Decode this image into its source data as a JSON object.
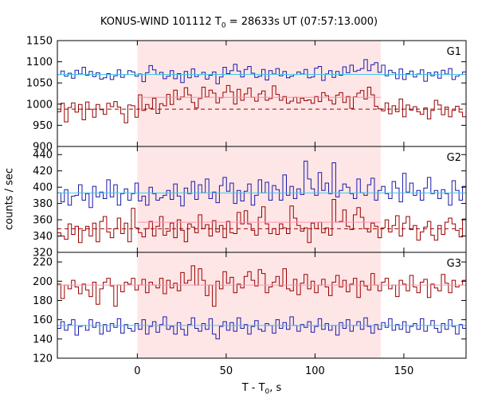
{
  "chart_data": {
    "type": "line",
    "title": {
      "pre": "KONUS-WIND 101112 T",
      "sub": "0",
      "post": " = 28633s UT (07:57:13.000)"
    },
    "xlabel": {
      "pre": "T - T",
      "sub": "0",
      "post": ", s"
    },
    "ylabel": "counts / sec",
    "xlim": [
      -45,
      185
    ],
    "x_ticks": [
      0,
      50,
      100,
      150
    ],
    "shaded_interval": [
      0,
      137
    ],
    "colors": {
      "red": "#990000",
      "blue": "#1a1aaa",
      "red_fit": "#ff90b0",
      "blue_fit": "#40c8e8",
      "shade": "#ffe6e6"
    },
    "panels": [
      {
        "name": "G1",
        "ylim": [
          900,
          1150
        ],
        "y_ticks": [
          900,
          950,
          1000,
          1050,
          1100,
          1150
        ],
        "series": [
          {
            "color": "blue",
            "values": [
              1070,
              1078,
              1066,
              1073,
              1061,
              1080,
              1071,
              1087,
              1068,
              1077,
              1065,
              1074,
              1059,
              1062,
              1072,
              1058,
              1067,
              1081,
              1063,
              1070,
              1079,
              1076,
              1066,
              1071,
              1053,
              1074,
              1091,
              1081,
              1070,
              1075,
              1060,
              1066,
              1079,
              1060,
              1072,
              1051,
              1077,
              1062,
              1083,
              1065,
              1070,
              1075,
              1059,
              1068,
              1076,
              1048,
              1064,
              1087,
              1072,
              1079,
              1094,
              1078,
              1064,
              1082,
              1089,
              1073,
              1063,
              1066,
              1082,
              1057,
              1079,
              1071,
              1084,
              1067,
              1077,
              1062,
              1066,
              1070,
              1076,
              1071,
              1082,
              1062,
              1064,
              1085,
              1089,
              1056,
              1071,
              1079,
              1063,
              1077,
              1068,
              1088,
              1074,
              1092,
              1077,
              1080,
              1084,
              1105,
              1079,
              1093,
              1098,
              1075,
              1092,
              1067,
              1080,
              1074,
              1060,
              1083,
              1058,
              1072,
              1078,
              1064,
              1071,
              1081,
              1054,
              1074,
              1067,
              1076,
              1061,
              1080,
              1071,
              1084,
              1058,
              1066,
              1070,
              1076
            ]
          },
          {
            "color": "red",
            "values": [
              982,
              1002,
              958,
              992,
              1003,
              981,
              999,
              963,
              1005,
              988,
              969,
              999,
              987,
              976,
              1002,
              994,
              1006,
              993,
              977,
              956,
              998,
              996,
              969,
              1022,
              985,
              999,
              990,
              1014,
              978,
              1001,
              996,
              1023,
              999,
              1033,
              1011,
              1017,
              1039,
              1022,
              1004,
              991,
              1013,
              1040,
              1017,
              1033,
              1026,
              1003,
              1015,
              1028,
              1044,
              1029,
              1000,
              1035,
              1009,
              1024,
              1038,
              1016,
              1007,
              1024,
              1031,
              1009,
              1013,
              1043,
              1023,
              1009,
              1018,
              1002,
              1007,
              1016,
              1003,
              1014,
              1008,
              1010,
              1002,
              1018,
              1006,
              1027,
              1020,
              1009,
              1000,
              1021,
              1027,
              1004,
              1018,
              990,
              1017,
              1026,
              1032,
              1012,
              1040,
              1022,
              995,
              989,
              984,
              1003,
              977,
              996,
              982,
              1012,
              970,
              998,
              986,
              994,
              982,
              976,
              991,
              965,
              985,
              1009,
              998,
              975,
              993,
              970,
              985,
              995,
              981,
              970
            ]
          }
        ],
        "fits": [
          {
            "color": "blue_fit",
            "value": 1070
          },
          {
            "color": "red_fit",
            "value": 1016,
            "from": 0,
            "to": 137
          },
          {
            "color": "red",
            "value": 988,
            "dashed": true
          }
        ]
      },
      {
        "name": "G2",
        "ylim": [
          320,
          450
        ],
        "y_ticks": [
          320,
          340,
          360,
          380,
          400,
          420,
          440
        ],
        "series": [
          {
            "color": "blue",
            "values": [
              393,
              382,
              397,
              378,
              389,
              390,
              403,
              384,
              392,
              375,
              401,
              388,
              394,
              386,
              409,
              388,
              403,
              378,
              392,
              398,
              384,
              392,
              405,
              383,
              389,
              378,
              400,
              392,
              384,
              387,
              390,
              396,
              385,
              404,
              389,
              377,
              399,
              392,
              407,
              385,
              403,
              393,
              410,
              386,
              394,
              381,
              402,
              412,
              395,
              405,
              380,
              396,
              383,
              395,
              404,
              378,
              390,
              409,
              393,
              406,
              384,
              402,
              397,
              384,
              415,
              390,
              401,
              386,
              398,
              391,
              432,
              410,
              398,
              390,
              418,
              396,
              405,
              392,
              430,
              388,
              396,
              404,
              400,
              392,
              386,
              410,
              393,
              390,
              403,
              411,
              384,
              396,
              401,
              392,
              386,
              407,
              399,
              382,
              417,
              394,
              405,
              390,
              396,
              384,
              399,
              412,
              392,
              396,
              386,
              397,
              392,
              378,
              408,
              396,
              384,
              401
            ]
          },
          {
            "color": "red",
            "values": [
              344,
              340,
              336,
              355,
              342,
              352,
              332,
              347,
              352,
              340,
              356,
              333,
              358,
              364,
              345,
              338,
              349,
              362,
              343,
              356,
              333,
              374,
              350,
              344,
              339,
              349,
              358,
              340,
              352,
              364,
              341,
              346,
              356,
              338,
              360,
              347,
              333,
              355,
              351,
              344,
              366,
              349,
              354,
              340,
              359,
              345,
              353,
              338,
              358,
              344,
              343,
              369,
              355,
              371,
              355,
              347,
              341,
              363,
              376,
              355,
              343,
              349,
              342,
              355,
              350,
              343,
              377,
              362,
              353,
              346,
              350,
              332,
              356,
              349,
              357,
              344,
              350,
              341,
              385,
              357,
              358,
              372,
              352,
              348,
              366,
              375,
              363,
              349,
              345,
              356,
              352,
              338,
              350,
              360,
              345,
              353,
              365,
              340,
              356,
              364,
              348,
              353,
              335,
              345,
              351,
              358,
              341,
              335,
              353,
              342,
              357,
              362,
              355,
              347,
              339,
              361
            ]
          }
        ],
        "fits": [
          {
            "color": "blue_fit",
            "value": 393
          },
          {
            "color": "red_fit",
            "value": 357,
            "from": 0,
            "to": 137
          },
          {
            "color": "red",
            "value": 349,
            "dashed": true
          }
        ]
      },
      {
        "name": "G3",
        "ylim": [
          120,
          230
        ],
        "y_ticks": [
          120,
          140,
          160,
          180,
          200,
          220
        ],
        "series": [
          {
            "color": "red",
            "values": [
              197,
              182,
              196,
              192,
              201,
              194,
              187,
              197,
              191,
              184,
              199,
              176,
              192,
              199,
              203,
              195,
              174,
              196,
              189,
              199,
              197,
              203,
              191,
              196,
              202,
              188,
              199,
              196,
              193,
              203,
              187,
              201,
              193,
              198,
              190,
              209,
              198,
              201,
              216,
              196,
              213,
              201,
              185,
              196,
              174,
              200,
              192,
              210,
              198,
              204,
              188,
              197,
              193,
              205,
              210,
              201,
              195,
              212,
              208,
              188,
              194,
              199,
              205,
              195,
              213,
              192,
              190,
              202,
              186,
              198,
              207,
              192,
              200,
              188,
              196,
              202,
              194,
              185,
              199,
              206,
              194,
              201,
              189,
              197,
              203,
              183,
              200,
              195,
              191,
              208,
              196,
              190,
              199,
              203,
              192,
              196,
              184,
              201,
              197,
              190,
              206,
              194,
              188,
              199,
              202,
              183,
              197,
              193,
              190,
              207,
              198,
              188,
              201,
              194,
              196,
              201
            ]
          },
          {
            "color": "blue",
            "values": [
              151,
              158,
              149,
              155,
              160,
              144,
              153,
              154,
              149,
              160,
              152,
              157,
              145,
              155,
              148,
              156,
              152,
              161,
              146,
              155,
              151,
              148,
              156,
              150,
              160,
              145,
              153,
              158,
              147,
              155,
              163,
              150,
              153,
              145,
              157,
              150,
              144,
              155,
              162,
              151,
              148,
              156,
              150,
              161,
              145,
              140,
              153,
              158,
              149,
              157,
              148,
              162,
              151,
              155,
              145,
              153,
              159,
              150,
              148,
              156,
              154,
              146,
              160,
              151,
              157,
              150,
              163,
              154,
              148,
              155,
              152,
              158,
              147,
              153,
              161,
              150,
              156,
              149,
              154,
              144,
              157,
              151,
              160,
              148,
              154,
              158,
              150,
              162,
              153,
              146,
              155,
              150,
              157,
              152,
              161,
              149,
              155,
              150,
              158,
              147,
              153,
              156,
              150,
              161,
              148,
              154,
              159,
              151,
              147,
              156,
              150,
              160,
              153,
              145,
              155,
              151
            ]
          }
        ],
        "fits": [
          {
            "color": "red_fit",
            "value": 196
          },
          {
            "color": "blue_fit",
            "value": 154
          }
        ]
      }
    ]
  }
}
